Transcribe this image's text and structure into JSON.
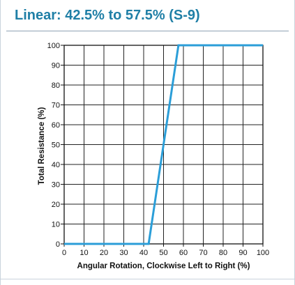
{
  "title": "Linear: 42.5% to 57.5% (S-9)",
  "colors": {
    "title": "#1f7fa6",
    "line": "#2b9ed8",
    "grid": "#222222",
    "divider": "#8fa2b3"
  },
  "chart_data": {
    "type": "line",
    "title": "Linear: 42.5% to 57.5% (S-9)",
    "xlabel": "Angular Rotation, Clockwise Left to Right (%)",
    "ylabel": "Total Resistance (%)",
    "xlim": [
      0,
      100
    ],
    "ylim": [
      0,
      100
    ],
    "grid": true,
    "x_ticks": [
      0,
      10,
      20,
      30,
      40,
      50,
      60,
      70,
      80,
      90,
      100
    ],
    "y_ticks": [
      0,
      10,
      20,
      30,
      40,
      50,
      60,
      70,
      80,
      90,
      100
    ],
    "x_tick_labels": [
      "0",
      "10",
      "20",
      "30",
      "40",
      "50",
      "60",
      "70",
      "80",
      "90",
      "100"
    ],
    "y_tick_labels": [
      "0",
      "10",
      "20",
      "30",
      "40",
      "50",
      "60",
      "70",
      "80",
      "90",
      "100"
    ],
    "series": [
      {
        "x": [
          0,
          42.5,
          57.5,
          100
        ],
        "y": [
          0,
          0,
          100,
          100
        ]
      }
    ]
  }
}
